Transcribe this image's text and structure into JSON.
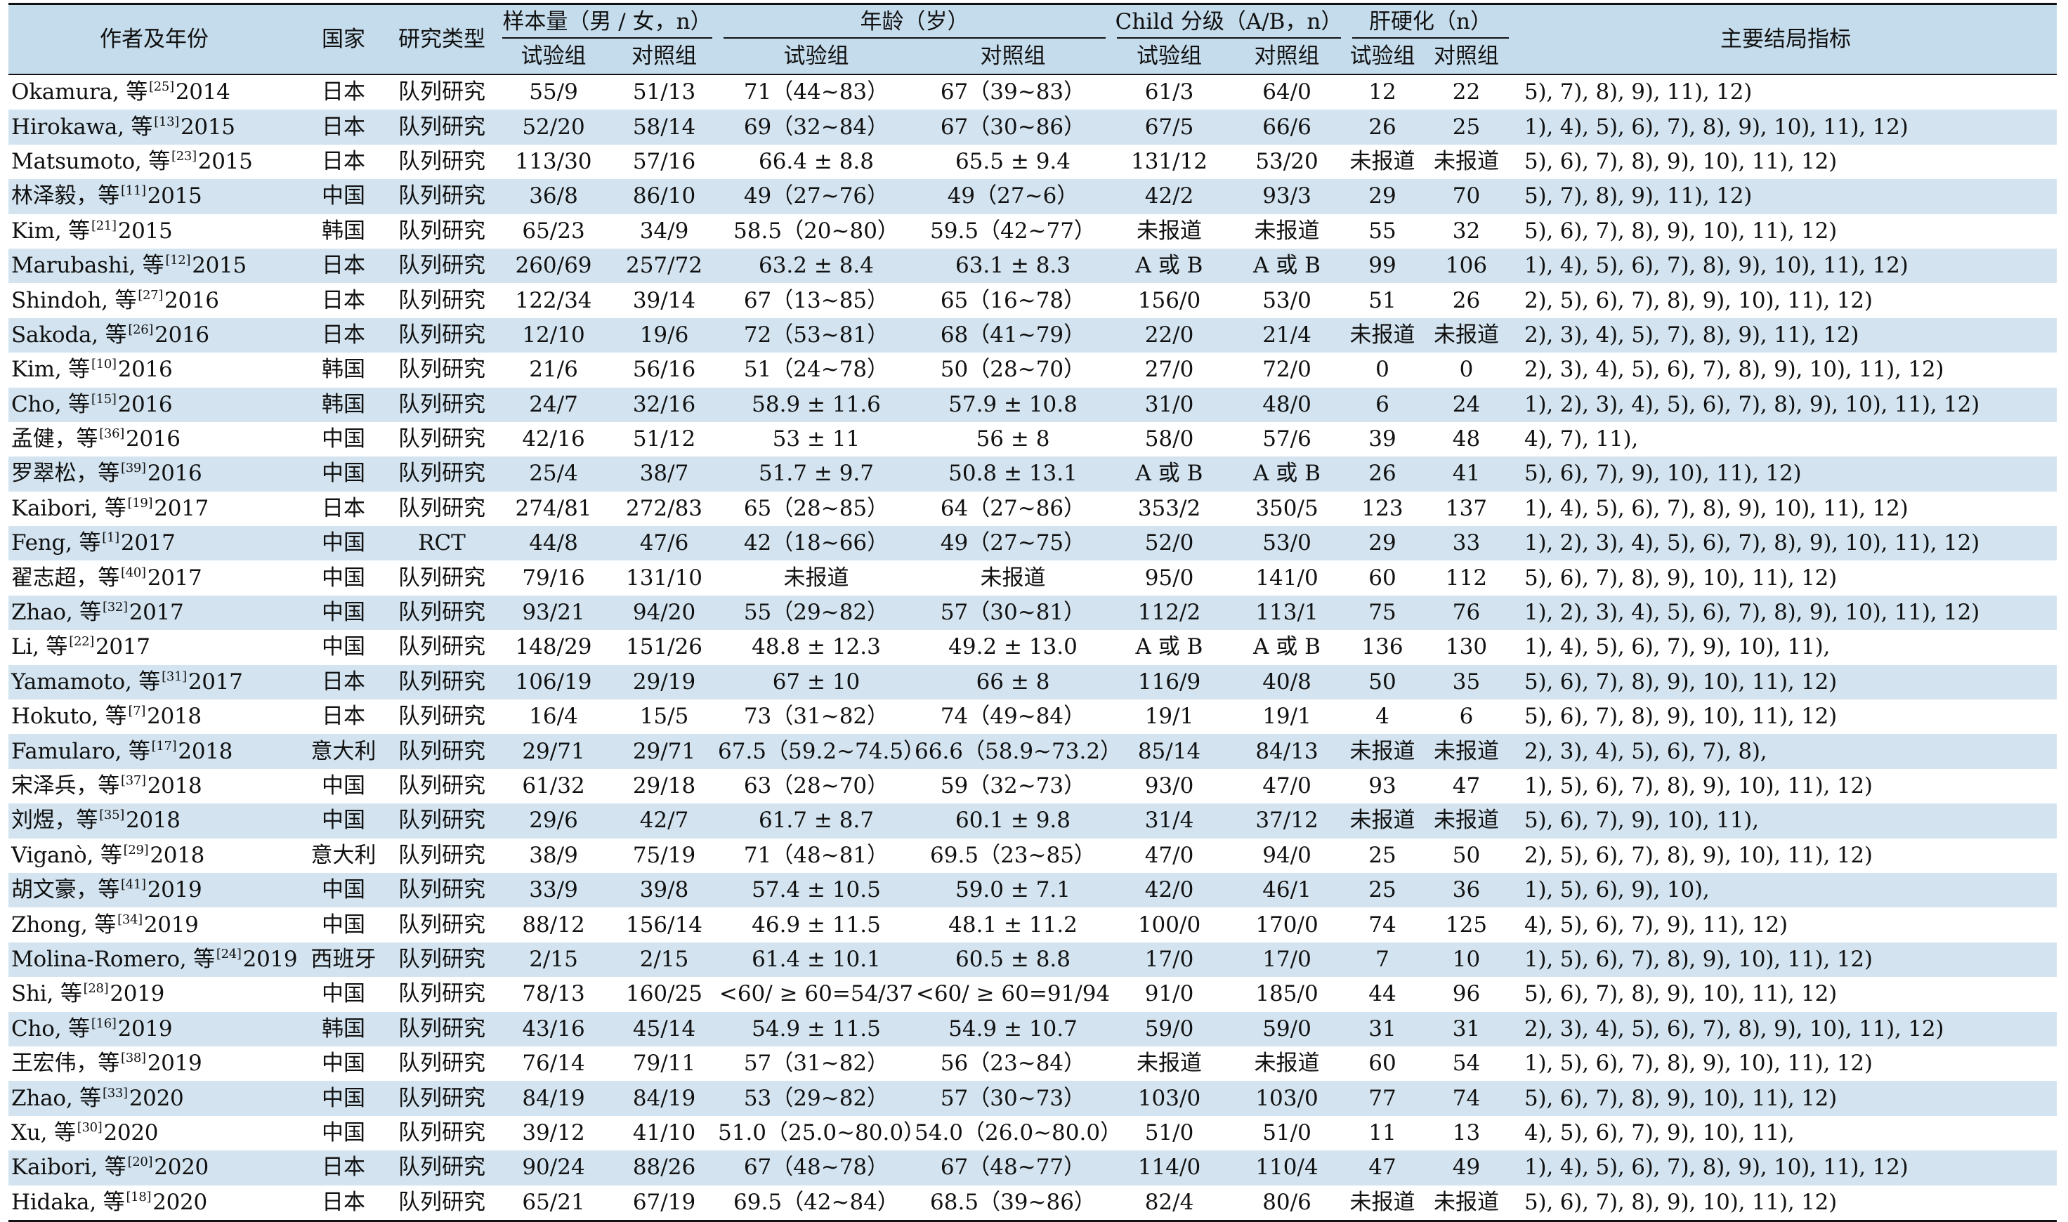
{
  "header": {
    "author": "作者及年份",
    "country": "国家",
    "study_type": "研究类型",
    "sample_size": "样本量（男 / 女，n）",
    "age": "年龄（岁）",
    "child": "Child 分级（A/B，n）",
    "cirrhosis": "肝硬化（n）",
    "outcome": "主要结局指标",
    "trial": "试验组",
    "control": "对照组"
  },
  "rows": [
    {
      "name": "Okamura, 等",
      "ref": "[25]",
      "year": "2014",
      "country": "日本",
      "type": "队列研究",
      "n_t": "55/9",
      "n_c": "51/13",
      "age_t": "71（44~83）",
      "age_c": "67（39~83）",
      "child_t": "61/3",
      "child_c": "64/0",
      "cir_t": "12",
      "cir_c": "22",
      "outcome": "5), 7), 8), 9), 11), 12)"
    },
    {
      "name": "Hirokawa, 等",
      "ref": "[13]",
      "year": "2015",
      "country": "日本",
      "type": "队列研究",
      "n_t": "52/20",
      "n_c": "58/14",
      "age_t": "69（32~84）",
      "age_c": "67（30~86）",
      "child_t": "67/5",
      "child_c": "66/6",
      "cir_t": "26",
      "cir_c": "25",
      "outcome": "1), 4), 5), 6), 7), 8), 9), 10), 11), 12)"
    },
    {
      "name": "Matsumoto, 等",
      "ref": "[23]",
      "year": "2015",
      "country": "日本",
      "type": "队列研究",
      "n_t": "113/30",
      "n_c": "57/16",
      "age_t": "66.4 ± 8.8",
      "age_c": "65.5 ± 9.4",
      "child_t": "131/12",
      "child_c": "53/20",
      "cir_t": "未报道",
      "cir_c": "未报道",
      "outcome": "5), 6), 7), 8), 9), 10), 11), 12)"
    },
    {
      "name": "林泽毅，等",
      "ref": "[11]",
      "year": "2015",
      "country": "中国",
      "type": "队列研究",
      "n_t": "36/8",
      "n_c": "86/10",
      "age_t": "49（27~76）",
      "age_c": "49（27~6）",
      "child_t": "42/2",
      "child_c": "93/3",
      "cir_t": "29",
      "cir_c": "70",
      "outcome": "5), 7), 8), 9), 11), 12)"
    },
    {
      "name": "Kim, 等",
      "ref": "[21]",
      "year": "2015",
      "country": "韩国",
      "type": "队列研究",
      "n_t": "65/23",
      "n_c": "34/9",
      "age_t": "58.5（20~80）",
      "age_c": "59.5（42~77）",
      "child_t": "未报道",
      "child_c": "未报道",
      "cir_t": "55",
      "cir_c": "32",
      "outcome": "5), 6), 7), 8), 9), 10), 11), 12)"
    },
    {
      "name": "Marubashi, 等",
      "ref": "[12]",
      "year": "2015",
      "country": "日本",
      "type": "队列研究",
      "n_t": "260/69",
      "n_c": "257/72",
      "age_t": "63.2 ± 8.4",
      "age_c": "63.1 ± 8.3",
      "child_t": "A 或 B",
      "child_c": "A 或 B",
      "cir_t": "99",
      "cir_c": "106",
      "outcome": "1), 4), 5), 6), 7), 8), 9), 10), 11), 12)"
    },
    {
      "name": "Shindoh, 等",
      "ref": "[27]",
      "year": "2016",
      "country": "日本",
      "type": "队列研究",
      "n_t": "122/34",
      "n_c": "39/14",
      "age_t": "67（13~85）",
      "age_c": "65（16~78）",
      "child_t": "156/0",
      "child_c": "53/0",
      "cir_t": "51",
      "cir_c": "26",
      "outcome": "2), 5), 6), 7), 8), 9), 10), 11), 12)"
    },
    {
      "name": "Sakoda, 等",
      "ref": "[26]",
      "year": "2016",
      "country": "日本",
      "type": "队列研究",
      "n_t": "12/10",
      "n_c": "19/6",
      "age_t": "72（53~81）",
      "age_c": "68（41~79）",
      "child_t": "22/0",
      "child_c": "21/4",
      "cir_t": "未报道",
      "cir_c": "未报道",
      "outcome": "2), 3), 4), 5), 7), 8), 9), 11), 12)"
    },
    {
      "name": "Kim, 等",
      "ref": "[10]",
      "year": "2016",
      "country": "韩国",
      "type": "队列研究",
      "n_t": "21/6",
      "n_c": "56/16",
      "age_t": "51（24~78）",
      "age_c": "50（28~70）",
      "child_t": "27/0",
      "child_c": "72/0",
      "cir_t": "0",
      "cir_c": "0",
      "outcome": "2), 3), 4), 5), 6), 7), 8), 9), 10), 11), 12)"
    },
    {
      "name": "Cho, 等",
      "ref": "[15]",
      "year": "2016",
      "country": "韩国",
      "type": "队列研究",
      "n_t": "24/7",
      "n_c": "32/16",
      "age_t": "58.9 ± 11.6",
      "age_c": "57.9 ± 10.8",
      "child_t": "31/0",
      "child_c": "48/0",
      "cir_t": "6",
      "cir_c": "24",
      "outcome": "1), 2), 3), 4), 5), 6), 7), 8), 9), 10), 11), 12)"
    },
    {
      "name": "孟健，等",
      "ref": "[36]",
      "year": "2016",
      "country": "中国",
      "type": "队列研究",
      "n_t": "42/16",
      "n_c": "51/12",
      "age_t": "53 ± 11",
      "age_c": "56 ± 8",
      "child_t": "58/0",
      "child_c": "57/6",
      "cir_t": "39",
      "cir_c": "48",
      "outcome": "4), 7), 11),"
    },
    {
      "name": "罗翠松，等",
      "ref": "[39]",
      "year": "2016",
      "country": "中国",
      "type": "队列研究",
      "n_t": "25/4",
      "n_c": "38/7",
      "age_t": "51.7 ± 9.7",
      "age_c": "50.8 ± 13.1",
      "child_t": "A 或 B",
      "child_c": "A 或 B",
      "cir_t": "26",
      "cir_c": "41",
      "outcome": "5), 6), 7), 9), 10), 11), 12)"
    },
    {
      "name": "Kaibori, 等",
      "ref": "[19]",
      "year": "2017",
      "country": "日本",
      "type": "队列研究",
      "n_t": "274/81",
      "n_c": "272/83",
      "age_t": "65（28~85）",
      "age_c": "64（27~86）",
      "child_t": "353/2",
      "child_c": "350/5",
      "cir_t": "123",
      "cir_c": "137",
      "outcome": "1), 4), 5), 6), 7), 8), 9), 10), 11), 12)"
    },
    {
      "name": "Feng, 等",
      "ref": "[1]",
      "year": "2017",
      "country": "中国",
      "type": "RCT",
      "n_t": "44/8",
      "n_c": "47/6",
      "age_t": "42（18~66）",
      "age_c": "49（27~75）",
      "child_t": "52/0",
      "child_c": "53/0",
      "cir_t": "29",
      "cir_c": "33",
      "outcome": "1), 2), 3), 4), 5), 6), 7), 8), 9), 10), 11), 12)"
    },
    {
      "name": "翟志超，等",
      "ref": "[40]",
      "year": "2017",
      "country": "中国",
      "type": "队列研究",
      "n_t": "79/16",
      "n_c": "131/10",
      "age_t": "未报道",
      "age_c": "未报道",
      "child_t": "95/0",
      "child_c": "141/0",
      "cir_t": "60",
      "cir_c": "112",
      "outcome": "5), 6), 7), 8), 9), 10), 11), 12)"
    },
    {
      "name": "Zhao, 等",
      "ref": "[32]",
      "year": "2017",
      "country": "中国",
      "type": "队列研究",
      "n_t": "93/21",
      "n_c": "94/20",
      "age_t": "55（29~82）",
      "age_c": "57（30~81）",
      "child_t": "112/2",
      "child_c": "113/1",
      "cir_t": "75",
      "cir_c": "76",
      "outcome": "1), 2), 3), 4), 5), 6), 7), 8), 9), 10), 11), 12)"
    },
    {
      "name": "Li, 等",
      "ref": "[22]",
      "year": "2017",
      "country": "中国",
      "type": "队列研究",
      "n_t": "148/29",
      "n_c": "151/26",
      "age_t": "48.8 ± 12.3",
      "age_c": "49.2 ± 13.0",
      "child_t": "A 或 B",
      "child_c": "A 或 B",
      "cir_t": "136",
      "cir_c": "130",
      "outcome": "1), 4), 5), 6), 7), 9), 10), 11),"
    },
    {
      "name": "Yamamoto, 等",
      "ref": "[31]",
      "year": "2017",
      "country": "日本",
      "type": "队列研究",
      "n_t": "106/19",
      "n_c": "29/19",
      "age_t": "67 ± 10",
      "age_c": "66 ± 8",
      "child_t": "116/9",
      "child_c": "40/8",
      "cir_t": "50",
      "cir_c": "35",
      "outcome": "5), 6), 7), 8), 9), 10), 11), 12)"
    },
    {
      "name": "Hokuto, 等",
      "ref": "[7]",
      "year": "2018",
      "country": "日本",
      "type": "队列研究",
      "n_t": "16/4",
      "n_c": "15/5",
      "age_t": "73（31~82）",
      "age_c": "74（49~84）",
      "child_t": "19/1",
      "child_c": "19/1",
      "cir_t": "4",
      "cir_c": "6",
      "outcome": "5), 6), 7), 8), 9), 10), 11), 12)"
    },
    {
      "name": "Famularo, 等",
      "ref": "[17]",
      "year": "2018",
      "country": "意大利",
      "type": "队列研究",
      "n_t": "29/71",
      "n_c": "29/71",
      "age_t": "67.5（59.2~74.5）",
      "age_c": "66.6（58.9~73.2）",
      "child_t": "85/14",
      "child_c": "84/13",
      "cir_t": "未报道",
      "cir_c": "未报道",
      "outcome": "2), 3), 4), 5), 6), 7), 8),"
    },
    {
      "name": "宋泽兵，等",
      "ref": "[37]",
      "year": "2018",
      "country": "中国",
      "type": "队列研究",
      "n_t": "61/32",
      "n_c": "29/18",
      "age_t": "63（28~70）",
      "age_c": "59（32~73）",
      "child_t": "93/0",
      "child_c": "47/0",
      "cir_t": "93",
      "cir_c": "47",
      "outcome": "1), 5), 6), 7), 8), 9), 10), 11), 12)"
    },
    {
      "name": "刘煜，等",
      "ref": "[35]",
      "year": "2018",
      "country": "中国",
      "type": "队列研究",
      "n_t": "29/6",
      "n_c": "42/7",
      "age_t": "61.7 ± 8.7",
      "age_c": "60.1 ± 9.8",
      "child_t": "31/4",
      "child_c": "37/12",
      "cir_t": "未报道",
      "cir_c": "未报道",
      "outcome": "5), 6), 7), 9), 10), 11),"
    },
    {
      "name": "Viganò, 等",
      "ref": "[29]",
      "year": "2018",
      "country": "意大利",
      "type": "队列研究",
      "n_t": "38/9",
      "n_c": "75/19",
      "age_t": "71（48~81）",
      "age_c": "69.5（23~85）",
      "child_t": "47/0",
      "child_c": "94/0",
      "cir_t": "25",
      "cir_c": "50",
      "outcome": "2), 5), 6), 7), 8), 9), 10), 11), 12)"
    },
    {
      "name": "胡文豪，等",
      "ref": "[41]",
      "year": "2019",
      "country": "中国",
      "type": "队列研究",
      "n_t": "33/9",
      "n_c": "39/8",
      "age_t": "57.4 ± 10.5",
      "age_c": "59.0 ± 7.1",
      "child_t": "42/0",
      "child_c": "46/1",
      "cir_t": "25",
      "cir_c": "36",
      "outcome": "1), 5), 6), 9), 10),"
    },
    {
      "name": "Zhong, 等",
      "ref": "[34]",
      "year": "2019",
      "country": "中国",
      "type": "队列研究",
      "n_t": "88/12",
      "n_c": "156/14",
      "age_t": "46.9 ± 11.5",
      "age_c": "48.1 ± 11.2",
      "child_t": "100/0",
      "child_c": "170/0",
      "cir_t": "74",
      "cir_c": "125",
      "outcome": "4), 5), 6), 7), 9), 11), 12)"
    },
    {
      "name": "Molina-Romero, 等",
      "ref": "[24]",
      "year": "2019",
      "country": "西班牙",
      "type": "队列研究",
      "n_t": "2/15",
      "n_c": "2/15",
      "age_t": "61.4 ± 10.1",
      "age_c": "60.5 ± 8.8",
      "child_t": "17/0",
      "child_c": "17/0",
      "cir_t": "7",
      "cir_c": "10",
      "outcome": "1), 5), 6), 7), 8), 9), 10), 11), 12)"
    },
    {
      "name": "Shi, 等",
      "ref": "[28]",
      "year": "2019",
      "country": "中国",
      "type": "队列研究",
      "n_t": "78/13",
      "n_c": "160/25",
      "age_t": "<60/ ≥ 60=54/37",
      "age_c": "<60/ ≥ 60=91/94",
      "child_t": "91/0",
      "child_c": "185/0",
      "cir_t": "44",
      "cir_c": "96",
      "outcome": "5), 6), 7), 8), 9), 10), 11), 12)"
    },
    {
      "name": "Cho, 等",
      "ref": "[16]",
      "year": "2019",
      "country": "韩国",
      "type": "队列研究",
      "n_t": "43/16",
      "n_c": "45/14",
      "age_t": "54.9 ± 11.5",
      "age_c": "54.9 ± 10.7",
      "child_t": "59/0",
      "child_c": "59/0",
      "cir_t": "31",
      "cir_c": "31",
      "outcome": "2), 3), 4), 5), 6), 7), 8), 9), 10), 11), 12)"
    },
    {
      "name": "王宏伟，等",
      "ref": "[38]",
      "year": "2019",
      "country": "中国",
      "type": "队列研究",
      "n_t": "76/14",
      "n_c": "79/11",
      "age_t": "57（31~82）",
      "age_c": "56（23~84）",
      "child_t": "未报道",
      "child_c": "未报道",
      "cir_t": "60",
      "cir_c": "54",
      "outcome": "1), 5), 6), 7), 8), 9), 10), 11), 12)"
    },
    {
      "name": "Zhao, 等",
      "ref": "[33]",
      "year": "2020",
      "country": "中国",
      "type": "队列研究",
      "n_t": "84/19",
      "n_c": "84/19",
      "age_t": "53（29~82）",
      "age_c": "57（30~73）",
      "child_t": "103/0",
      "child_c": "103/0",
      "cir_t": "77",
      "cir_c": "74",
      "outcome": "5), 6), 7), 8), 9), 10), 11), 12)"
    },
    {
      "name": "Xu, 等",
      "ref": "[30]",
      "year": "2020",
      "country": "中国",
      "type": "队列研究",
      "n_t": "39/12",
      "n_c": "41/10",
      "age_t": "51.0（25.0~80.0）",
      "age_c": "54.0（26.0~80.0）",
      "child_t": "51/0",
      "child_c": "51/0",
      "cir_t": "11",
      "cir_c": "13",
      "outcome": "4), 5), 6), 7), 9), 10), 11),"
    },
    {
      "name": "Kaibori, 等",
      "ref": "[20]",
      "year": "2020",
      "country": "日本",
      "type": "队列研究",
      "n_t": "90/24",
      "n_c": "88/26",
      "age_t": "67（48~78）",
      "age_c": "67（48~77）",
      "child_t": "114/0",
      "child_c": "110/4",
      "cir_t": "47",
      "cir_c": "49",
      "outcome": "1), 4), 5), 6), 7), 8), 9), 10), 11), 12)"
    },
    {
      "name": "Hidaka, 等",
      "ref": "[18]",
      "year": "2020",
      "country": "日本",
      "type": "队列研究",
      "n_t": "65/21",
      "n_c": "67/19",
      "age_t": "69.5（42~84）",
      "age_c": "68.5（39~86）",
      "child_t": "82/4",
      "child_c": "80/6",
      "cir_t": "未报道",
      "cir_c": "未报道",
      "outcome": "5), 6), 7), 8), 9), 10), 11), 12)"
    }
  ]
}
